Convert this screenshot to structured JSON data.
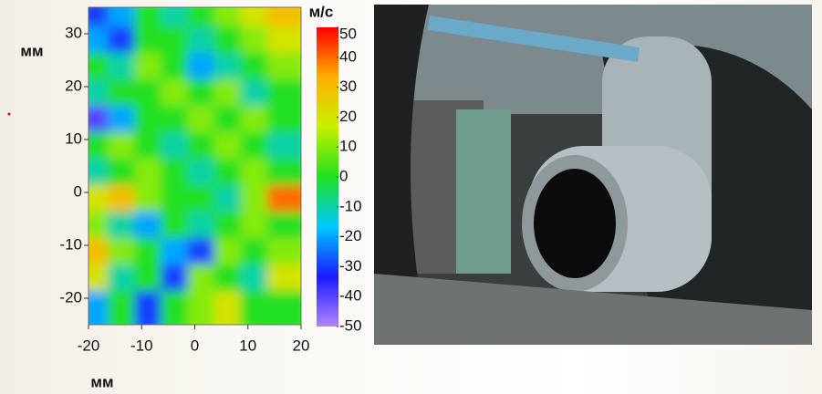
{
  "chart_data": {
    "type": "heatmap",
    "xlabel": "мм",
    "ylabel": "мм",
    "colorbar_label": "м/с",
    "xlim": [
      -20,
      20
    ],
    "ylim": [
      -25,
      35
    ],
    "xticks": [
      -20,
      -10,
      0,
      10,
      20
    ],
    "yticks": [
      -20,
      -10,
      0,
      10,
      20,
      30
    ],
    "clim": [
      -50,
      50
    ],
    "colorbar_ticks": [
      -50,
      -40,
      -30,
      -20,
      -10,
      0,
      10,
      20,
      30,
      40,
      50
    ],
    "colorscale": [
      "#b085ff",
      "#1a1aff",
      "#00c8ff",
      "#20e020",
      "#c8f000",
      "#ffb000",
      "#ff0000"
    ],
    "x": [
      -17.5,
      -12.5,
      -7.5,
      -2.5,
      2.5,
      7.5,
      12.5,
      17.5
    ],
    "y": [
      32.5,
      27.5,
      22.5,
      17.5,
      12.5,
      7.5,
      2.5,
      -2.5,
      -7.5,
      -12.5,
      -17.5,
      -22.5
    ],
    "z": [
      [
        -30,
        -20,
        0,
        -10,
        0,
        10,
        20,
        30
      ],
      [
        -20,
        -30,
        0,
        0,
        -10,
        0,
        10,
        20
      ],
      [
        0,
        -10,
        10,
        0,
        -20,
        -10,
        0,
        10
      ],
      [
        -10,
        0,
        0,
        10,
        0,
        10,
        -10,
        0
      ],
      [
        -40,
        -20,
        0,
        0,
        10,
        0,
        10,
        0
      ],
      [
        0,
        10,
        0,
        -10,
        0,
        10,
        0,
        -10
      ],
      [
        -10,
        0,
        10,
        0,
        -10,
        0,
        10,
        0
      ],
      [
        20,
        30,
        10,
        0,
        0,
        -10,
        10,
        40
      ],
      [
        10,
        -10,
        -20,
        0,
        -10,
        0,
        10,
        0
      ],
      [
        30,
        10,
        0,
        -20,
        -30,
        10,
        0,
        10
      ],
      [
        20,
        -10,
        0,
        -30,
        10,
        0,
        -10,
        20
      ],
      [
        -20,
        0,
        -30,
        0,
        10,
        20,
        0,
        0
      ]
    ]
  }
}
